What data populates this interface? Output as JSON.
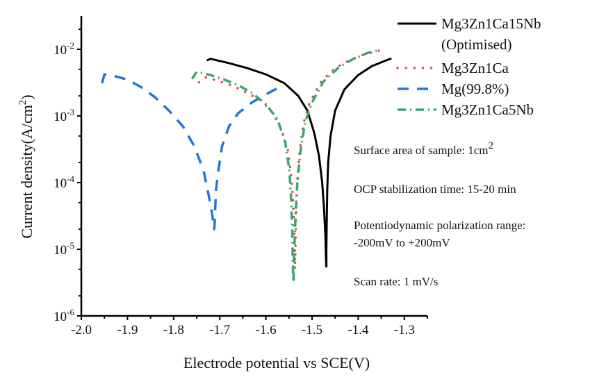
{
  "chart_data": {
    "type": "line",
    "title": "",
    "xlabel": "Electrode potential vs SCE(V)",
    "ylabel": "Current density(A/cm",
    "ylabel_sup": "2",
    "ylabel_close": ")",
    "xlim": [
      -2.0,
      -1.25
    ],
    "ylim": [
      1e-06,
      0.0316
    ],
    "yscale": "log",
    "grid": false,
    "x_ticks": [
      -2.0,
      -1.9,
      -1.8,
      -1.7,
      -1.6,
      -1.5,
      -1.4,
      -1.3
    ],
    "x_tick_labels": [
      "-2.0",
      "-1.9",
      "-1.8",
      "-1.7",
      "-1.6",
      "-1.5",
      "-1.4",
      "-1.3"
    ],
    "y_ticks": [
      -6,
      -5,
      -4,
      -3,
      -2
    ],
    "y_tick_labels": [
      {
        "base": "10",
        "exp": "-6"
      },
      {
        "base": "10",
        "exp": "-5"
      },
      {
        "base": "10",
        "exp": "-4"
      },
      {
        "base": "10",
        "exp": "-3"
      },
      {
        "base": "10",
        "exp": "-2"
      }
    ],
    "legend_position": "top-right",
    "series": [
      {
        "name": "Mg3Zn1Ca15Nb",
        "name_line2": "(Optimised)",
        "color": "#000000",
        "style": "solid",
        "x": [
          -1.728,
          -1.72,
          -1.68,
          -1.64,
          -1.6,
          -1.56,
          -1.53,
          -1.51,
          -1.495,
          -1.485,
          -1.478,
          -1.474,
          -1.471,
          -1.47,
          -1.469,
          -1.469,
          -1.468,
          -1.467,
          -1.465,
          -1.46,
          -1.45,
          -1.43,
          -1.4,
          -1.37,
          -1.34,
          -1.328
        ],
        "y": [
          0.0068,
          0.0072,
          0.0062,
          0.0052,
          0.0042,
          0.0031,
          0.002,
          0.0012,
          0.00055,
          0.00025,
          0.0001,
          4e-05,
          1.5e-05,
          8e-06,
          5.5e-06,
          1e-05,
          3e-05,
          8e-05,
          0.0002,
          0.0005,
          0.0012,
          0.0025,
          0.0041,
          0.0056,
          0.0068,
          0.0073
        ]
      },
      {
        "name": "Mg3Zn1Ca",
        "color": "#d9534f",
        "style": "dotted",
        "x": [
          -1.745,
          -1.73,
          -1.7,
          -1.67,
          -1.64,
          -1.61,
          -1.585,
          -1.565,
          -1.552,
          -1.545,
          -1.541,
          -1.539,
          -1.537,
          -1.537,
          -1.536,
          -1.535,
          -1.532,
          -1.527,
          -1.518,
          -1.505,
          -1.48,
          -1.45,
          -1.42,
          -1.39,
          -1.355
        ],
        "y": [
          0.0032,
          0.0038,
          0.0033,
          0.0028,
          0.0022,
          0.0017,
          0.0011,
          0.0006,
          0.0003,
          0.00012,
          5e-05,
          2e-05,
          8e-06,
          5e-06,
          1e-05,
          3e-05,
          0.0001,
          0.0003,
          0.0008,
          0.0016,
          0.0033,
          0.0052,
          0.0068,
          0.0082,
          0.0095
        ]
      },
      {
        "name": "Mg(99.8%)",
        "color": "#2176d9",
        "style": "dashed",
        "x": [
          -1.955,
          -1.95,
          -1.93,
          -1.9,
          -1.87,
          -1.84,
          -1.81,
          -1.78,
          -1.755,
          -1.735,
          -1.725,
          -1.718,
          -1.714,
          -1.712,
          -1.711,
          -1.71,
          -1.708,
          -1.703,
          -1.695,
          -1.68,
          -1.66,
          -1.63,
          -1.6,
          -1.575
        ],
        "y": [
          0.0031,
          0.0042,
          0.004,
          0.0035,
          0.0027,
          0.0019,
          0.0012,
          0.0007,
          0.00035,
          0.00015,
          7e-05,
          4e-05,
          2.5e-05,
          2e-05,
          2.5e-05,
          4e-05,
          8e-05,
          0.00015,
          0.00035,
          0.0007,
          0.0011,
          0.0016,
          0.0021,
          0.0026
        ]
      },
      {
        "name": "Mg3Zn1Ca5Nb",
        "color": "#3aa76d",
        "style": "dashdot",
        "x": [
          -1.76,
          -1.75,
          -1.72,
          -1.69,
          -1.66,
          -1.63,
          -1.6,
          -1.575,
          -1.558,
          -1.549,
          -1.545,
          -1.543,
          -1.542,
          -1.541,
          -1.54,
          -1.539,
          -1.536,
          -1.532,
          -1.525,
          -1.515,
          -1.5,
          -1.475,
          -1.44,
          -1.41,
          -1.38,
          -1.355
        ],
        "y": [
          0.0036,
          0.0046,
          0.0041,
          0.0035,
          0.0029,
          0.0022,
          0.0015,
          0.0009,
          0.0004,
          0.00015,
          5e-05,
          2e-05,
          8e-06,
          4e-06,
          3.2e-06,
          8e-06,
          3e-05,
          0.0001,
          0.0003,
          0.0008,
          0.0016,
          0.0033,
          0.0055,
          0.0072,
          0.0088,
          0.0097
        ]
      }
    ],
    "annotations": [
      {
        "text": "Surface area of sample: 1cm",
        "sup": "2"
      },
      {
        "text": "OCP stabilization time: 15-20 min",
        "sup": ""
      },
      {
        "text": "Potentiodynamic polarization range:",
        "sup": ""
      },
      {
        "text": "-200mV to +200mV",
        "sup": ""
      },
      {
        "text": "Scan rate: 1 mV/s",
        "sup": ""
      }
    ]
  }
}
